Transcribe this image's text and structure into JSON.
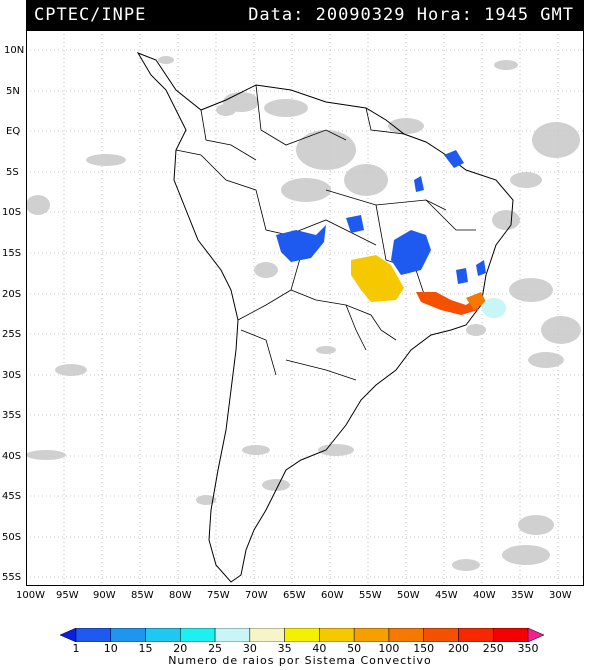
{
  "header": {
    "org": "CPTEC/INPE",
    "datetime": "Data: 20090329 Hora: 1945 GMT"
  },
  "map": {
    "lat_labels": [
      "10N",
      "5N",
      "EQ",
      "5S",
      "10S",
      "15S",
      "20S",
      "25S",
      "30S",
      "35S",
      "40S",
      "45S",
      "50S",
      "55S"
    ],
    "lon_labels": [
      "100W",
      "95W",
      "90W",
      "85W",
      "80W",
      "75W",
      "70W",
      "65W",
      "60W",
      "55W",
      "50W",
      "45W",
      "40W",
      "35W",
      "30W"
    ],
    "cloud_color": "#c8c8c8",
    "border_color": "#000000",
    "grid_color": "#9a9a9a"
  },
  "colorbar": {
    "title": "Numero de raios por Sistema Convectivo",
    "ticks": [
      "1",
      "10",
      "15",
      "20",
      "25",
      "30",
      "35",
      "40",
      "50",
      "100",
      "150",
      "200",
      "250",
      "350"
    ],
    "colors": [
      "#0a1ee6",
      "#1e5af0",
      "#1e96f0",
      "#1ec8f0",
      "#1ef0f0",
      "#c8f5f5",
      "#f5f5c8",
      "#f5f000",
      "#f5c800",
      "#f5a000",
      "#f57800",
      "#f55000",
      "#f52800",
      "#f50000",
      "#f0208c"
    ]
  },
  "lightning_systems": [
    {
      "name": "central-brazil-blue",
      "level": "10"
    },
    {
      "name": "goias-blue",
      "level": "10"
    },
    {
      "name": "mato-grosso-sul-yellow",
      "level": "50"
    },
    {
      "name": "sao-paulo-coast-red",
      "level": "200"
    },
    {
      "name": "atlantic-cyan",
      "level": "30"
    },
    {
      "name": "northeast-blue",
      "level": "1"
    }
  ]
}
